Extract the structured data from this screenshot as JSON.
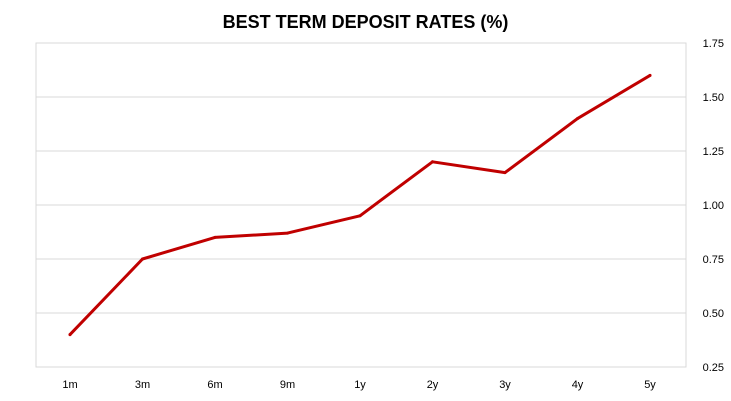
{
  "chart_data": {
    "type": "line",
    "title": "BEST TERM DEPOSIT RATES (%)",
    "xlabel": "",
    "ylabel": "",
    "categories": [
      "1m",
      "3m",
      "6m",
      "9m",
      "1y",
      "2y",
      "3y",
      "4y",
      "5y"
    ],
    "series": [
      {
        "values": [
          0.4,
          0.75,
          0.85,
          0.87,
          0.95,
          1.2,
          1.15,
          1.4,
          1.6
        ],
        "color": "#c00000"
      }
    ],
    "ylim": [
      0.25,
      1.75
    ],
    "yticks": [
      "0.25",
      "0.50",
      "0.75",
      "1.00",
      "1.25",
      "1.50",
      "1.75"
    ],
    "y_axis_side": "right",
    "grid": "horizontal",
    "legend": "none"
  }
}
